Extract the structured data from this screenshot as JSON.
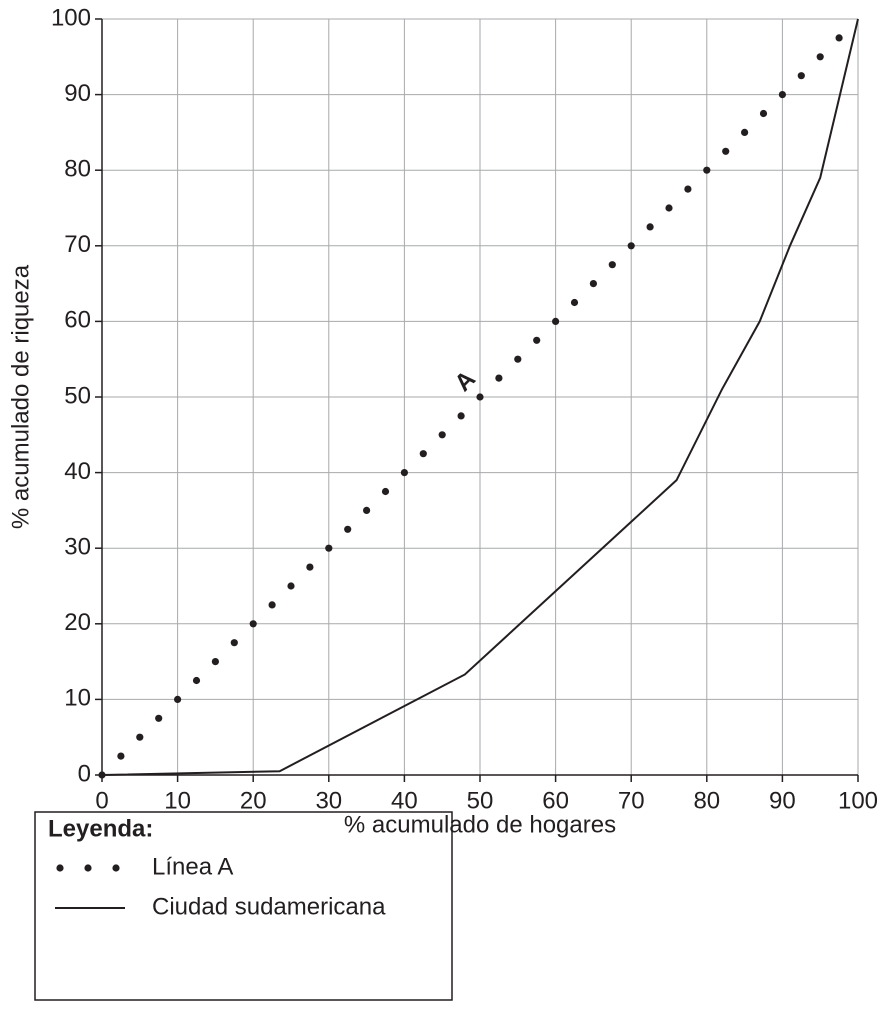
{
  "chart_data": {
    "type": "line",
    "x_label": "% acumulado de hogares",
    "y_label": "% acumulado de riqueza",
    "annotation": "A",
    "legend_title": "Leyenda:",
    "xlim": [
      0,
      100
    ],
    "ylim": [
      0,
      100
    ],
    "xticks": [
      0,
      10,
      20,
      30,
      40,
      50,
      60,
      70,
      80,
      90,
      100
    ],
    "yticks": [
      0,
      10,
      20,
      30,
      40,
      50,
      60,
      70,
      80,
      90,
      100
    ],
    "grid": true,
    "series": [
      {
        "name": "Línea A",
        "color": "#231f20",
        "style": "dots",
        "x": [
          0,
          2.5,
          5,
          7.5,
          10,
          12.5,
          15,
          17.5,
          20,
          22.5,
          25,
          27.5,
          30,
          32.5,
          35,
          37.5,
          40,
          42.5,
          45,
          47.5,
          50,
          52.5,
          55,
          57.5,
          60,
          62.5,
          65,
          67.5,
          70,
          72.5,
          75,
          77.5,
          80,
          82.5,
          85,
          87.5,
          90,
          92.5,
          95,
          97.5
        ],
        "values": [
          0,
          2.5,
          5,
          7.5,
          10,
          12.5,
          15,
          17.5,
          20,
          22.5,
          25,
          27.5,
          30,
          32.5,
          35,
          37.5,
          40,
          42.5,
          45,
          47.5,
          50,
          52.5,
          55,
          57.5,
          60,
          62.5,
          65,
          67.5,
          70,
          72.5,
          75,
          77.5,
          80,
          82.5,
          85,
          87.5,
          90,
          92.5,
          95,
          97.5
        ]
      },
      {
        "name": "Ciudad sudamericana",
        "color": "#231f20",
        "style": "solid",
        "x": [
          0,
          23.5,
          48,
          76,
          82,
          87,
          91,
          95,
          100
        ],
        "values": [
          0,
          0.5,
          13.3,
          39,
          51,
          60,
          70,
          79,
          100
        ]
      }
    ]
  }
}
